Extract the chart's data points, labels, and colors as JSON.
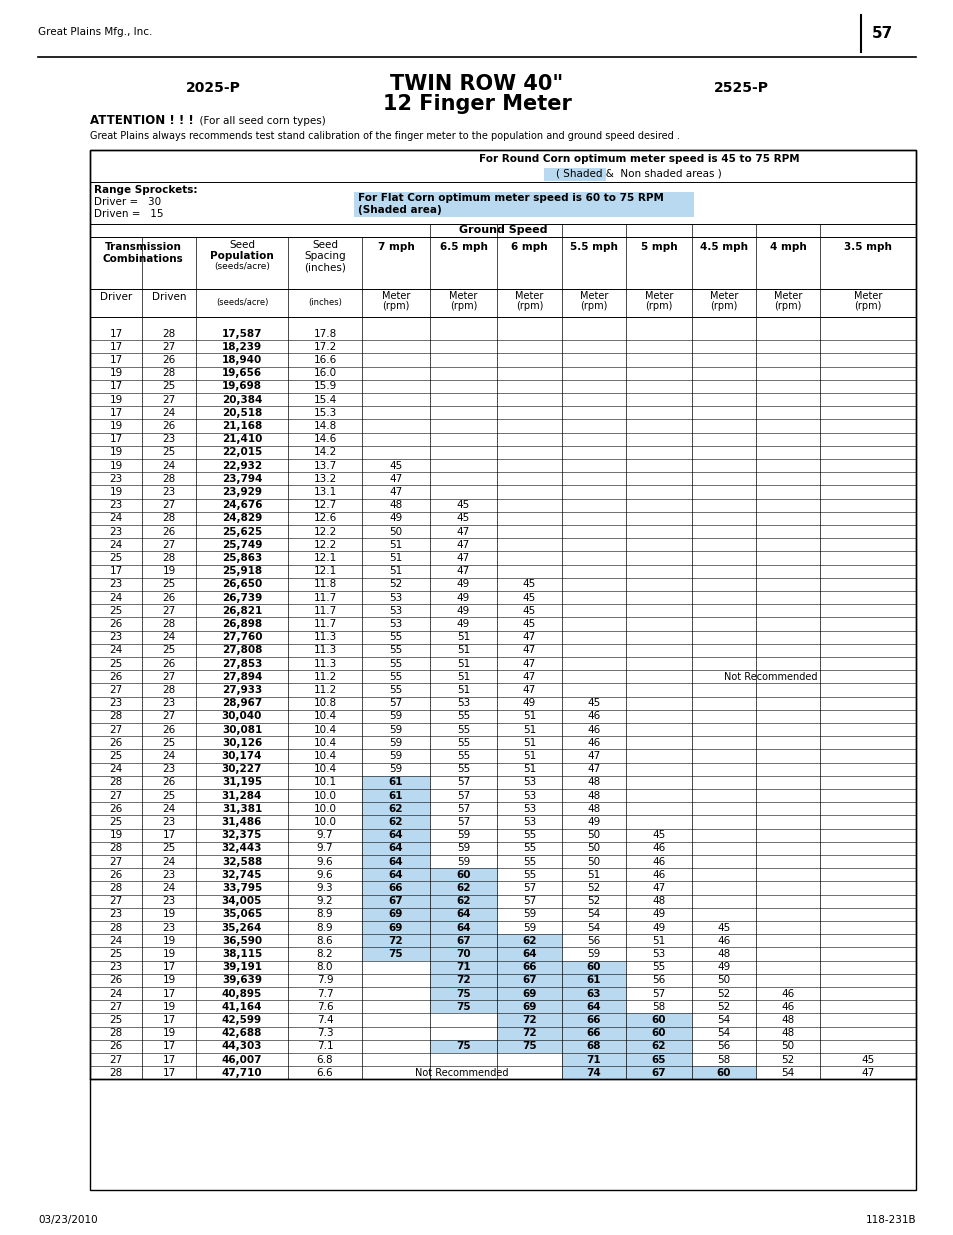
{
  "title_center": "TWIN ROW 40\"",
  "title_center2": "12 Finger Meter",
  "title_left": "2025-P",
  "title_right": "2525-P",
  "attention_bold": "ATTENTION ! ! !",
  "attention_rest": "  (For all seed corn types)",
  "recommendation_text": "Great Plains always recommends test stand calibration of the finger meter to the population and ground speed desired .",
  "header_line1": "For Round Corn optimum meter speed is 45 to 75 RPM",
  "header_line2_pre": "( Shaded",
  "header_line2_post": " &  Non shaded areas )",
  "range_sprockets": "Range Sprockets:",
  "driver_label": "Driver =",
  "driver_val": "30",
  "driven_label": "Driven =",
  "driven_val": "15",
  "flat_corn_line1": "For Flat Corn optimum meter speed is 60 to 75 RPM",
  "flat_corn_line2": "(Shaded area)",
  "ground_speed": "Ground Speed",
  "speeds": [
    "7 mph",
    "6.5 mph",
    "6 mph",
    "5.5 mph",
    "5 mph",
    "4.5 mph",
    "4 mph",
    "3.5 mph"
  ],
  "page_number": "57",
  "company_name": "Great Plains Mfg., Inc.",
  "date": "03/23/2010",
  "doc_number": "118-231B",
  "blue_bg": "#b8d9f0",
  "rows": [
    [
      17,
      28,
      "17,587",
      "17.8",
      "",
      "",
      "",
      "",
      "",
      "",
      "",
      ""
    ],
    [
      17,
      27,
      "18,239",
      "17.2",
      "",
      "",
      "",
      "",
      "",
      "",
      "",
      ""
    ],
    [
      17,
      26,
      "18,940",
      "16.6",
      "",
      "",
      "",
      "",
      "",
      "",
      "",
      ""
    ],
    [
      19,
      28,
      "19,656",
      "16.0",
      "",
      "",
      "",
      "",
      "",
      "",
      "",
      ""
    ],
    [
      17,
      25,
      "19,698",
      "15.9",
      "",
      "",
      "",
      "",
      "",
      "",
      "",
      ""
    ],
    [
      19,
      27,
      "20,384",
      "15.4",
      "",
      "",
      "",
      "",
      "",
      "",
      "",
      ""
    ],
    [
      17,
      24,
      "20,518",
      "15.3",
      "",
      "",
      "",
      "",
      "",
      "",
      "",
      ""
    ],
    [
      19,
      26,
      "21,168",
      "14.8",
      "",
      "",
      "",
      "",
      "",
      "",
      "",
      ""
    ],
    [
      17,
      23,
      "21,410",
      "14.6",
      "",
      "",
      "",
      "",
      "",
      "",
      "",
      ""
    ],
    [
      19,
      25,
      "22,015",
      "14.2",
      "",
      "",
      "",
      "",
      "",
      "",
      "",
      ""
    ],
    [
      19,
      24,
      "22,932",
      "13.7",
      "45",
      "",
      "",
      "",
      "",
      "",
      "",
      ""
    ],
    [
      23,
      28,
      "23,794",
      "13.2",
      "47",
      "",
      "",
      "",
      "",
      "",
      "",
      ""
    ],
    [
      19,
      23,
      "23,929",
      "13.1",
      "47",
      "",
      "",
      "",
      "",
      "",
      "",
      ""
    ],
    [
      23,
      27,
      "24,676",
      "12.7",
      "48",
      "45",
      "",
      "",
      "",
      "",
      "",
      ""
    ],
    [
      24,
      28,
      "24,829",
      "12.6",
      "49",
      "45",
      "",
      "",
      "",
      "",
      "",
      ""
    ],
    [
      23,
      26,
      "25,625",
      "12.2",
      "50",
      "47",
      "",
      "",
      "",
      "",
      "",
      ""
    ],
    [
      24,
      27,
      "25,749",
      "12.2",
      "51",
      "47",
      "",
      "",
      "",
      "",
      "",
      ""
    ],
    [
      25,
      28,
      "25,863",
      "12.1",
      "51",
      "47",
      "",
      "",
      "",
      "",
      "",
      ""
    ],
    [
      17,
      19,
      "25,918",
      "12.1",
      "51",
      "47",
      "",
      "",
      "",
      "",
      "",
      ""
    ],
    [
      23,
      25,
      "26,650",
      "11.8",
      "52",
      "49",
      "45",
      "",
      "",
      "",
      "",
      ""
    ],
    [
      24,
      26,
      "26,739",
      "11.7",
      "53",
      "49",
      "45",
      "",
      "",
      "",
      "",
      ""
    ],
    [
      25,
      27,
      "26,821",
      "11.7",
      "53",
      "49",
      "45",
      "",
      "",
      "",
      "",
      ""
    ],
    [
      26,
      28,
      "26,898",
      "11.7",
      "53",
      "49",
      "45",
      "",
      "",
      "",
      "",
      ""
    ],
    [
      23,
      24,
      "27,760",
      "11.3",
      "55",
      "51",
      "47",
      "",
      "",
      "",
      "",
      ""
    ],
    [
      24,
      25,
      "27,808",
      "11.3",
      "55",
      "51",
      "47",
      "",
      "",
      "",
      "",
      ""
    ],
    [
      25,
      26,
      "27,853",
      "11.3",
      "55",
      "51",
      "47",
      "",
      "",
      "",
      "",
      ""
    ],
    [
      26,
      27,
      "27,894",
      "11.2",
      "55",
      "51",
      "47",
      "",
      "NR",
      "",
      "",
      ""
    ],
    [
      27,
      28,
      "27,933",
      "11.2",
      "55",
      "51",
      "47",
      "",
      "",
      "",
      "",
      ""
    ],
    [
      23,
      23,
      "28,967",
      "10.8",
      "57",
      "53",
      "49",
      "45",
      "",
      "",
      "",
      ""
    ],
    [
      28,
      27,
      "30,040",
      "10.4",
      "59",
      "55",
      "51",
      "46",
      "",
      "",
      "",
      ""
    ],
    [
      27,
      26,
      "30,081",
      "10.4",
      "59",
      "55",
      "51",
      "46",
      "",
      "",
      "",
      ""
    ],
    [
      26,
      25,
      "30,126",
      "10.4",
      "59",
      "55",
      "51",
      "46",
      "",
      "",
      "",
      ""
    ],
    [
      25,
      24,
      "30,174",
      "10.4",
      "59",
      "55",
      "51",
      "47",
      "",
      "",
      "",
      ""
    ],
    [
      24,
      23,
      "30,227",
      "10.4",
      "59",
      "55",
      "51",
      "47",
      "",
      "",
      "",
      ""
    ],
    [
      28,
      26,
      "31,195",
      "10.1",
      "61",
      "57",
      "53",
      "48",
      "",
      "",
      "",
      ""
    ],
    [
      27,
      25,
      "31,284",
      "10.0",
      "61",
      "57",
      "53",
      "48",
      "",
      "",
      "",
      ""
    ],
    [
      26,
      24,
      "31,381",
      "10.0",
      "62",
      "57",
      "53",
      "48",
      "",
      "",
      "",
      ""
    ],
    [
      25,
      23,
      "31,486",
      "10.0",
      "62",
      "57",
      "53",
      "49",
      "",
      "",
      "",
      ""
    ],
    [
      19,
      17,
      "32,375",
      "9.7",
      "64",
      "59",
      "55",
      "50",
      "45",
      "",
      "",
      ""
    ],
    [
      28,
      25,
      "32,443",
      "9.7",
      "64",
      "59",
      "55",
      "50",
      "46",
      "",
      "",
      ""
    ],
    [
      27,
      24,
      "32,588",
      "9.6",
      "64",
      "59",
      "55",
      "50",
      "46",
      "",
      "",
      ""
    ],
    [
      26,
      23,
      "32,745",
      "9.6",
      "64",
      "60",
      "55",
      "51",
      "46",
      "",
      "",
      ""
    ],
    [
      28,
      24,
      "33,795",
      "9.3",
      "66",
      "62",
      "57",
      "52",
      "47",
      "",
      "",
      ""
    ],
    [
      27,
      23,
      "34,005",
      "9.2",
      "67",
      "62",
      "57",
      "52",
      "48",
      "",
      "",
      ""
    ],
    [
      23,
      19,
      "35,065",
      "8.9",
      "69",
      "64",
      "59",
      "54",
      "49",
      "",
      "",
      ""
    ],
    [
      28,
      23,
      "35,264",
      "8.9",
      "69",
      "64",
      "59",
      "54",
      "49",
      "45",
      "",
      ""
    ],
    [
      24,
      19,
      "36,590",
      "8.6",
      "72",
      "67",
      "62",
      "56",
      "51",
      "46",
      "",
      ""
    ],
    [
      25,
      19,
      "38,115",
      "8.2",
      "75",
      "70",
      "64",
      "59",
      "53",
      "48",
      "",
      ""
    ],
    [
      23,
      17,
      "39,191",
      "8.0",
      "",
      "71",
      "66",
      "60",
      "55",
      "49",
      "",
      ""
    ],
    [
      26,
      19,
      "39,639",
      "7.9",
      "",
      "72",
      "67",
      "61",
      "56",
      "50",
      "",
      ""
    ],
    [
      24,
      17,
      "40,895",
      "7.7",
      "",
      "75",
      "69",
      "63",
      "57",
      "52",
      "46",
      ""
    ],
    [
      27,
      19,
      "41,164",
      "7.6",
      "",
      "75",
      "69",
      "64",
      "58",
      "52",
      "46",
      ""
    ],
    [
      25,
      17,
      "42,599",
      "7.4",
      "",
      "",
      "72",
      "66",
      "60",
      "54",
      "48",
      ""
    ],
    [
      28,
      19,
      "42,688",
      "7.3",
      "",
      "",
      "72",
      "66",
      "60",
      "54",
      "48",
      ""
    ],
    [
      26,
      17,
      "44,303",
      "7.1",
      "",
      "75",
      "75",
      "68",
      "62",
      "56",
      "50",
      ""
    ],
    [
      27,
      17,
      "46,007",
      "6.8",
      "",
      "",
      "",
      "71",
      "65",
      "58",
      "52",
      "45"
    ],
    [
      28,
      17,
      "47,710",
      "6.6",
      "NR2",
      "",
      "",
      "74",
      "67",
      "60",
      "54",
      "47"
    ]
  ]
}
